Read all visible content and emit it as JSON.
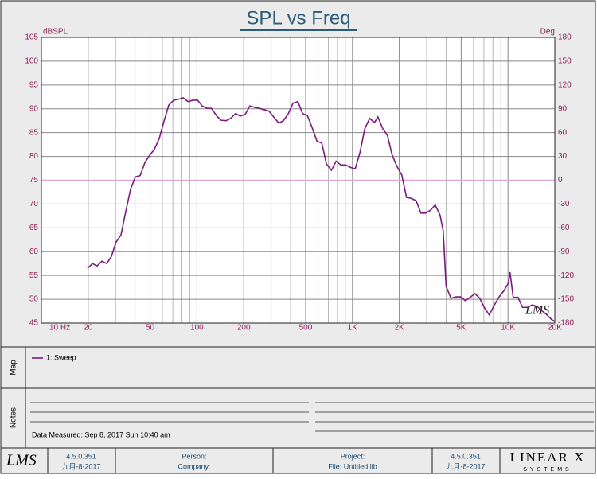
{
  "chart_data": {
    "type": "line",
    "title": "SPL vs Freq",
    "y_label": "dBSPL",
    "y2_label": "Deg",
    "log_x": true,
    "grid": true,
    "watermark": "LMS",
    "x": [
      19.8,
      21.3,
      22.8,
      24.5,
      26.3,
      28.2,
      30.2,
      32.5,
      34.9,
      37.5,
      40.2,
      43.2,
      46.4,
      49.8,
      53.3,
      57.3,
      61.5,
      66,
      70.9,
      76,
      81.7,
      87.7,
      94,
      101,
      108,
      116,
      124,
      134,
      143,
      154,
      165,
      177,
      190,
      204,
      219,
      235,
      253,
      271,
      291,
      313,
      336,
      360,
      387,
      415,
      446,
      478,
      513,
      551,
      591,
      635,
      681,
      732,
      785,
      843,
      905,
      971,
      1042,
      1119,
      1200,
      1290,
      1384,
      1457,
      1563,
      1678,
      1800,
      1933,
      2075,
      2227,
      2390,
      2566,
      2754,
      2956,
      3173,
      3406,
      3656,
      3830,
      4000,
      4300,
      4620,
      4960,
      5320,
      5710,
      6130,
      6580,
      7060,
      7580,
      8140,
      8730,
      9370,
      10060,
      10300,
      10800,
      11600,
      12400,
      13400,
      14300,
      15400,
      16500,
      17700,
      19000,
      20000
    ],
    "series": [
      {
        "name": "1: Sweep",
        "color": "#7a1a7e",
        "values": [
          56.5,
          57.5,
          57,
          58,
          57.5,
          59,
          62,
          63.5,
          68.5,
          73.2,
          75.7,
          76,
          78.8,
          80.3,
          81.5,
          83.8,
          87.5,
          90.8,
          91.8,
          92,
          92.3,
          91.5,
          91.8,
          91.8,
          90.6,
          90.1,
          90.1,
          88.5,
          87.6,
          87.5,
          88,
          89,
          88.5,
          88.8,
          90.6,
          90.3,
          90.1,
          89.8,
          89.5,
          88.2,
          87,
          87.5,
          89,
          91.2,
          91.5,
          89,
          88.6,
          86,
          83.2,
          82.8,
          78.4,
          77.1,
          79,
          78.2,
          78.2,
          77.7,
          77.4,
          80.9,
          85.8,
          88,
          87.1,
          88.3,
          85.9,
          84.4,
          80.3,
          77.9,
          76.1,
          71.4,
          71.2,
          70.7,
          68.1,
          68.1,
          68.7,
          69.8,
          67.7,
          64.4,
          52.7,
          50.2,
          50.5,
          50.5,
          49.7,
          50.4,
          51.2,
          50.2,
          48.2,
          46.7,
          48.7,
          50.4,
          51.7,
          53.4,
          55.7,
          50.4,
          50.4,
          48.3,
          48.3,
          48.8,
          48.5,
          47.6,
          46.8,
          45.8,
          45.3
        ]
      }
    ],
    "xlim": [
      10,
      20000
    ],
    "xticks": [
      {
        "value": 10,
        "label": "10  Hz"
      },
      20,
      50,
      100,
      200,
      500,
      {
        "value": 1000,
        "label": "1K"
      },
      {
        "value": 2000,
        "label": "2K"
      },
      {
        "value": 5000,
        "label": "5K"
      },
      {
        "value": 10000,
        "label": "10K"
      },
      {
        "value": 20000,
        "label": "20K"
      }
    ],
    "xgrid_minor": [
      30,
      40,
      60,
      70,
      80,
      90,
      300,
      400,
      600,
      700,
      800,
      900,
      3000,
      4000,
      6000,
      7000,
      8000,
      9000
    ],
    "ylim": [
      45,
      105
    ],
    "yticks": [
      45,
      50,
      55,
      60,
      65,
      70,
      75,
      80,
      85,
      90,
      95,
      100,
      105
    ],
    "y2lim": [
      -180,
      180
    ],
    "y2ticks": [
      -180,
      -150,
      -120,
      -90,
      -60,
      -30,
      0,
      30,
      60,
      90,
      120,
      150,
      180
    ],
    "reference_line": {
      "value": 75,
      "color": "#e0a8d8"
    }
  },
  "panels": {
    "map": "Map",
    "notes": "Notes",
    "data_measured": "Data Measured: Sep 8, 2017 Sun 10:40 am"
  },
  "footer": {
    "logo": "LMS",
    "version_left": "4.5.0.351",
    "date_left": "九月-8-2017",
    "person": "Person:",
    "company": "Company:",
    "project": "Project:",
    "file": "File: Untitled.lib",
    "version_right": "4.5.0.351",
    "date_right": "九月-8-2017",
    "brand": "LINEAR X",
    "brand_sub": "SYSTEMS"
  }
}
